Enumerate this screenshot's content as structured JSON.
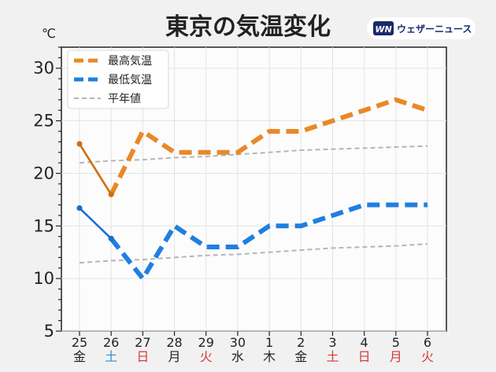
{
  "header": {
    "title": "東京の気温変化",
    "unit_label": "℃",
    "logo_text": "ウェザーニュース",
    "logo_mark": "WN"
  },
  "colors": {
    "high": "#e8892a",
    "high_obs": "#cf6f10",
    "low": "#1f7fe0",
    "low_obs": "#1a6fcf",
    "normal": "#b5b5b5",
    "weekday": "#222222",
    "saturday": "#2a8fd8",
    "holiday": "#d43a3a"
  },
  "chart_data": {
    "type": "line",
    "title": "東京の気温変化",
    "ylabel": "℃",
    "ylim": [
      5,
      32
    ],
    "yticks": [
      5,
      10,
      15,
      20,
      25,
      30
    ],
    "grid": true,
    "legend_placement": "top-left",
    "categories": [
      {
        "date": "25",
        "day": "金",
        "kind": "weekday"
      },
      {
        "date": "26",
        "day": "土",
        "kind": "saturday"
      },
      {
        "date": "27",
        "day": "日",
        "kind": "holiday"
      },
      {
        "date": "28",
        "day": "月",
        "kind": "weekday"
      },
      {
        "date": "29",
        "day": "火",
        "kind": "holiday"
      },
      {
        "date": "30",
        "day": "水",
        "kind": "weekday"
      },
      {
        "date": "1",
        "day": "木",
        "kind": "weekday"
      },
      {
        "date": "2",
        "day": "金",
        "kind": "weekday"
      },
      {
        "date": "3",
        "day": "土",
        "kind": "holiday"
      },
      {
        "date": "4",
        "day": "日",
        "kind": "holiday"
      },
      {
        "date": "5",
        "day": "月",
        "kind": "holiday"
      },
      {
        "date": "6",
        "day": "火",
        "kind": "holiday"
      }
    ],
    "series": [
      {
        "name": "最高気温",
        "key": "high",
        "observed": [
          22.8,
          18
        ],
        "forecast": [
          18,
          24,
          22,
          22,
          22,
          24,
          24,
          25,
          26,
          27,
          26
        ]
      },
      {
        "name": "最低気温",
        "key": "low",
        "observed": [
          16.7,
          13.8
        ],
        "forecast": [
          13.8,
          10,
          15,
          13,
          13,
          15,
          15,
          16,
          17,
          17,
          17
        ]
      },
      {
        "name": "平年値",
        "key": "normal_high",
        "values": [
          21.0,
          21.2,
          21.3,
          21.5,
          21.6,
          21.8,
          22.0,
          22.2,
          22.3,
          22.4,
          22.5,
          22.6
        ]
      },
      {
        "key": "normal_low",
        "values": [
          11.5,
          11.7,
          11.8,
          12.0,
          12.2,
          12.3,
          12.5,
          12.7,
          12.9,
          13.0,
          13.1,
          13.3
        ]
      }
    ]
  }
}
